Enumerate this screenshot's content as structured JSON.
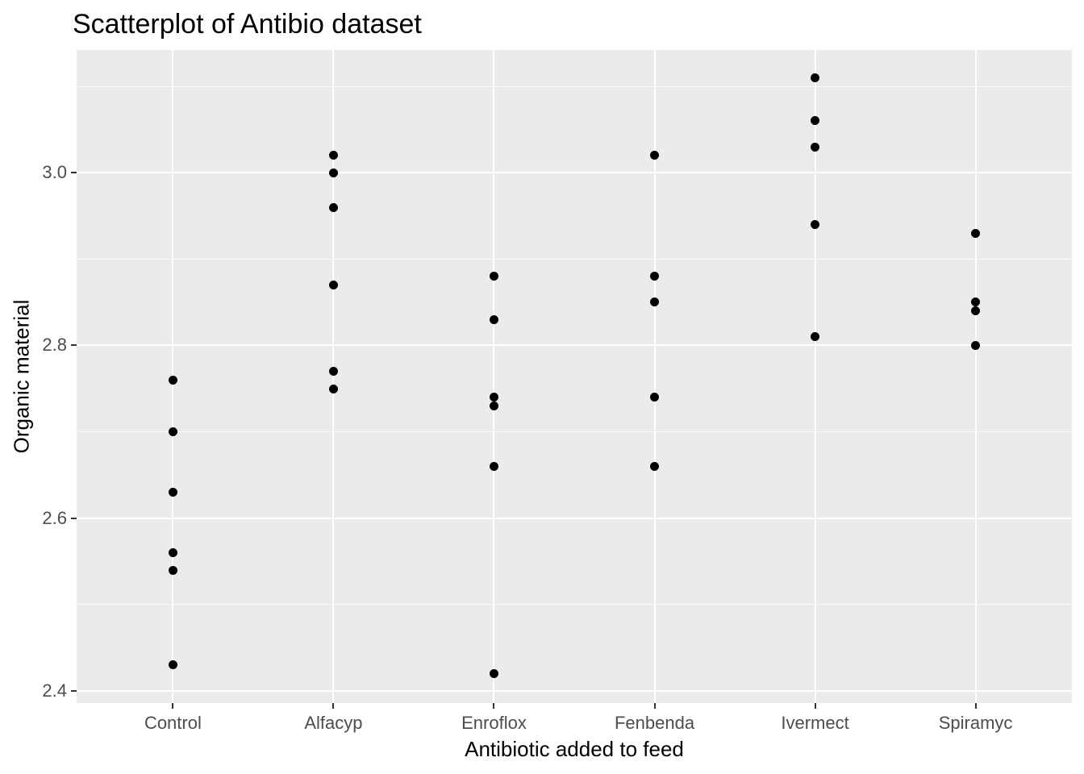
{
  "title": "Scatterplot of Antibio dataset",
  "colors": {
    "background": "#FFFFFF",
    "panel_background": "#EBEBEB",
    "grid_major": "#FFFFFF",
    "grid_minor": "#FFFFFF",
    "point": "#000000",
    "axis_text": "#4D4D4D",
    "tick_mark": "#333333",
    "title_text": "#000000"
  },
  "chart_data": {
    "type": "scatter",
    "title": "Scatterplot of Antibio dataset",
    "xlabel": "Antibiotic added to feed",
    "ylabel": "Organic material",
    "categories": [
      "Control",
      "Alfacyp",
      "Enroflox",
      "Fenbenda",
      "Ivermect",
      "Spiramyc"
    ],
    "series": [
      {
        "name": "Control",
        "values": [
          2.76,
          2.7,
          2.63,
          2.56,
          2.54,
          2.43
        ]
      },
      {
        "name": "Alfacyp",
        "values": [
          3.02,
          3.0,
          2.96,
          2.87,
          2.77,
          2.75
        ]
      },
      {
        "name": "Enroflox",
        "values": [
          2.88,
          2.83,
          2.74,
          2.73,
          2.66,
          2.42
        ]
      },
      {
        "name": "Fenbenda",
        "values": [
          3.02,
          2.88,
          2.85,
          2.74,
          2.66
        ]
      },
      {
        "name": "Ivermect",
        "values": [
          3.11,
          3.06,
          3.03,
          2.94,
          2.81
        ]
      },
      {
        "name": "Spiramyc",
        "values": [
          2.93,
          2.85,
          2.84,
          2.8
        ]
      }
    ],
    "y_ticks": [
      2.4,
      2.6,
      2.8,
      3.0
    ],
    "y_tick_labels": [
      "2.4",
      "2.6",
      "2.8",
      "3.0"
    ],
    "y_minor_ticks": [
      2.5,
      2.7,
      2.9,
      3.1
    ],
    "ylim": [
      2.386,
      3.142
    ],
    "grid": true,
    "legend": false
  }
}
